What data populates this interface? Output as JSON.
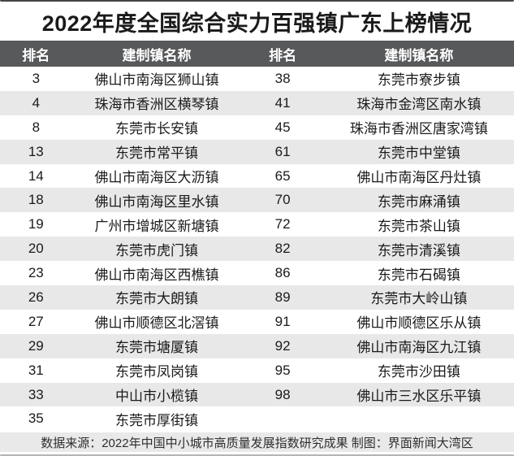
{
  "chart_data": {
    "type": "table",
    "title": "2022年度全国综合实力百强镇广东上榜情况",
    "headers": [
      "排名",
      "建制镇名称",
      "排名",
      "建制镇名称"
    ],
    "rows": [
      [
        "3",
        "佛山市南海区狮山镇",
        "38",
        "东莞市寮步镇"
      ],
      [
        "4",
        "珠海市香洲区横琴镇",
        "41",
        "珠海市金湾区南水镇"
      ],
      [
        "8",
        "东莞市长安镇",
        "45",
        "珠海市香洲区唐家湾镇"
      ],
      [
        "13",
        "东莞市常平镇",
        "61",
        "东莞市中堂镇"
      ],
      [
        "14",
        "佛山市南海区大沥镇",
        "65",
        "佛山市南海区丹灶镇"
      ],
      [
        "18",
        "佛山市南海区里水镇",
        "70",
        "东莞市麻涌镇"
      ],
      [
        "19",
        "广州市增城区新塘镇",
        "72",
        "东莞市茶山镇"
      ],
      [
        "20",
        "东莞市虎门镇",
        "82",
        "东莞市清溪镇"
      ],
      [
        "23",
        "佛山市南海区西樵镇",
        "86",
        "东莞市石碣镇"
      ],
      [
        "26",
        "东莞市大朗镇",
        "89",
        "东莞市大岭山镇"
      ],
      [
        "27",
        "佛山市顺德区北滘镇",
        "91",
        "佛山市顺德区乐从镇"
      ],
      [
        "29",
        "东莞市塘厦镇",
        "92",
        "佛山市南海区九江镇"
      ],
      [
        "31",
        "东莞市凤岗镇",
        "95",
        "东莞市沙田镇"
      ],
      [
        "33",
        "中山市小榄镇",
        "98",
        "佛山市三水区乐平镇"
      ],
      [
        "35",
        "东莞市厚街镇",
        "",
        ""
      ]
    ],
    "footer": "数据来源：2022年中国中小城市高质量发展指数研究成果 制图：界面新闻大湾区"
  },
  "colors": {
    "header_bg": "#58595b",
    "row_alt": "#e8e8e8",
    "footer_bg": "#e9e9e9",
    "text": "#1a1a1a",
    "edge_top": "#454545"
  }
}
